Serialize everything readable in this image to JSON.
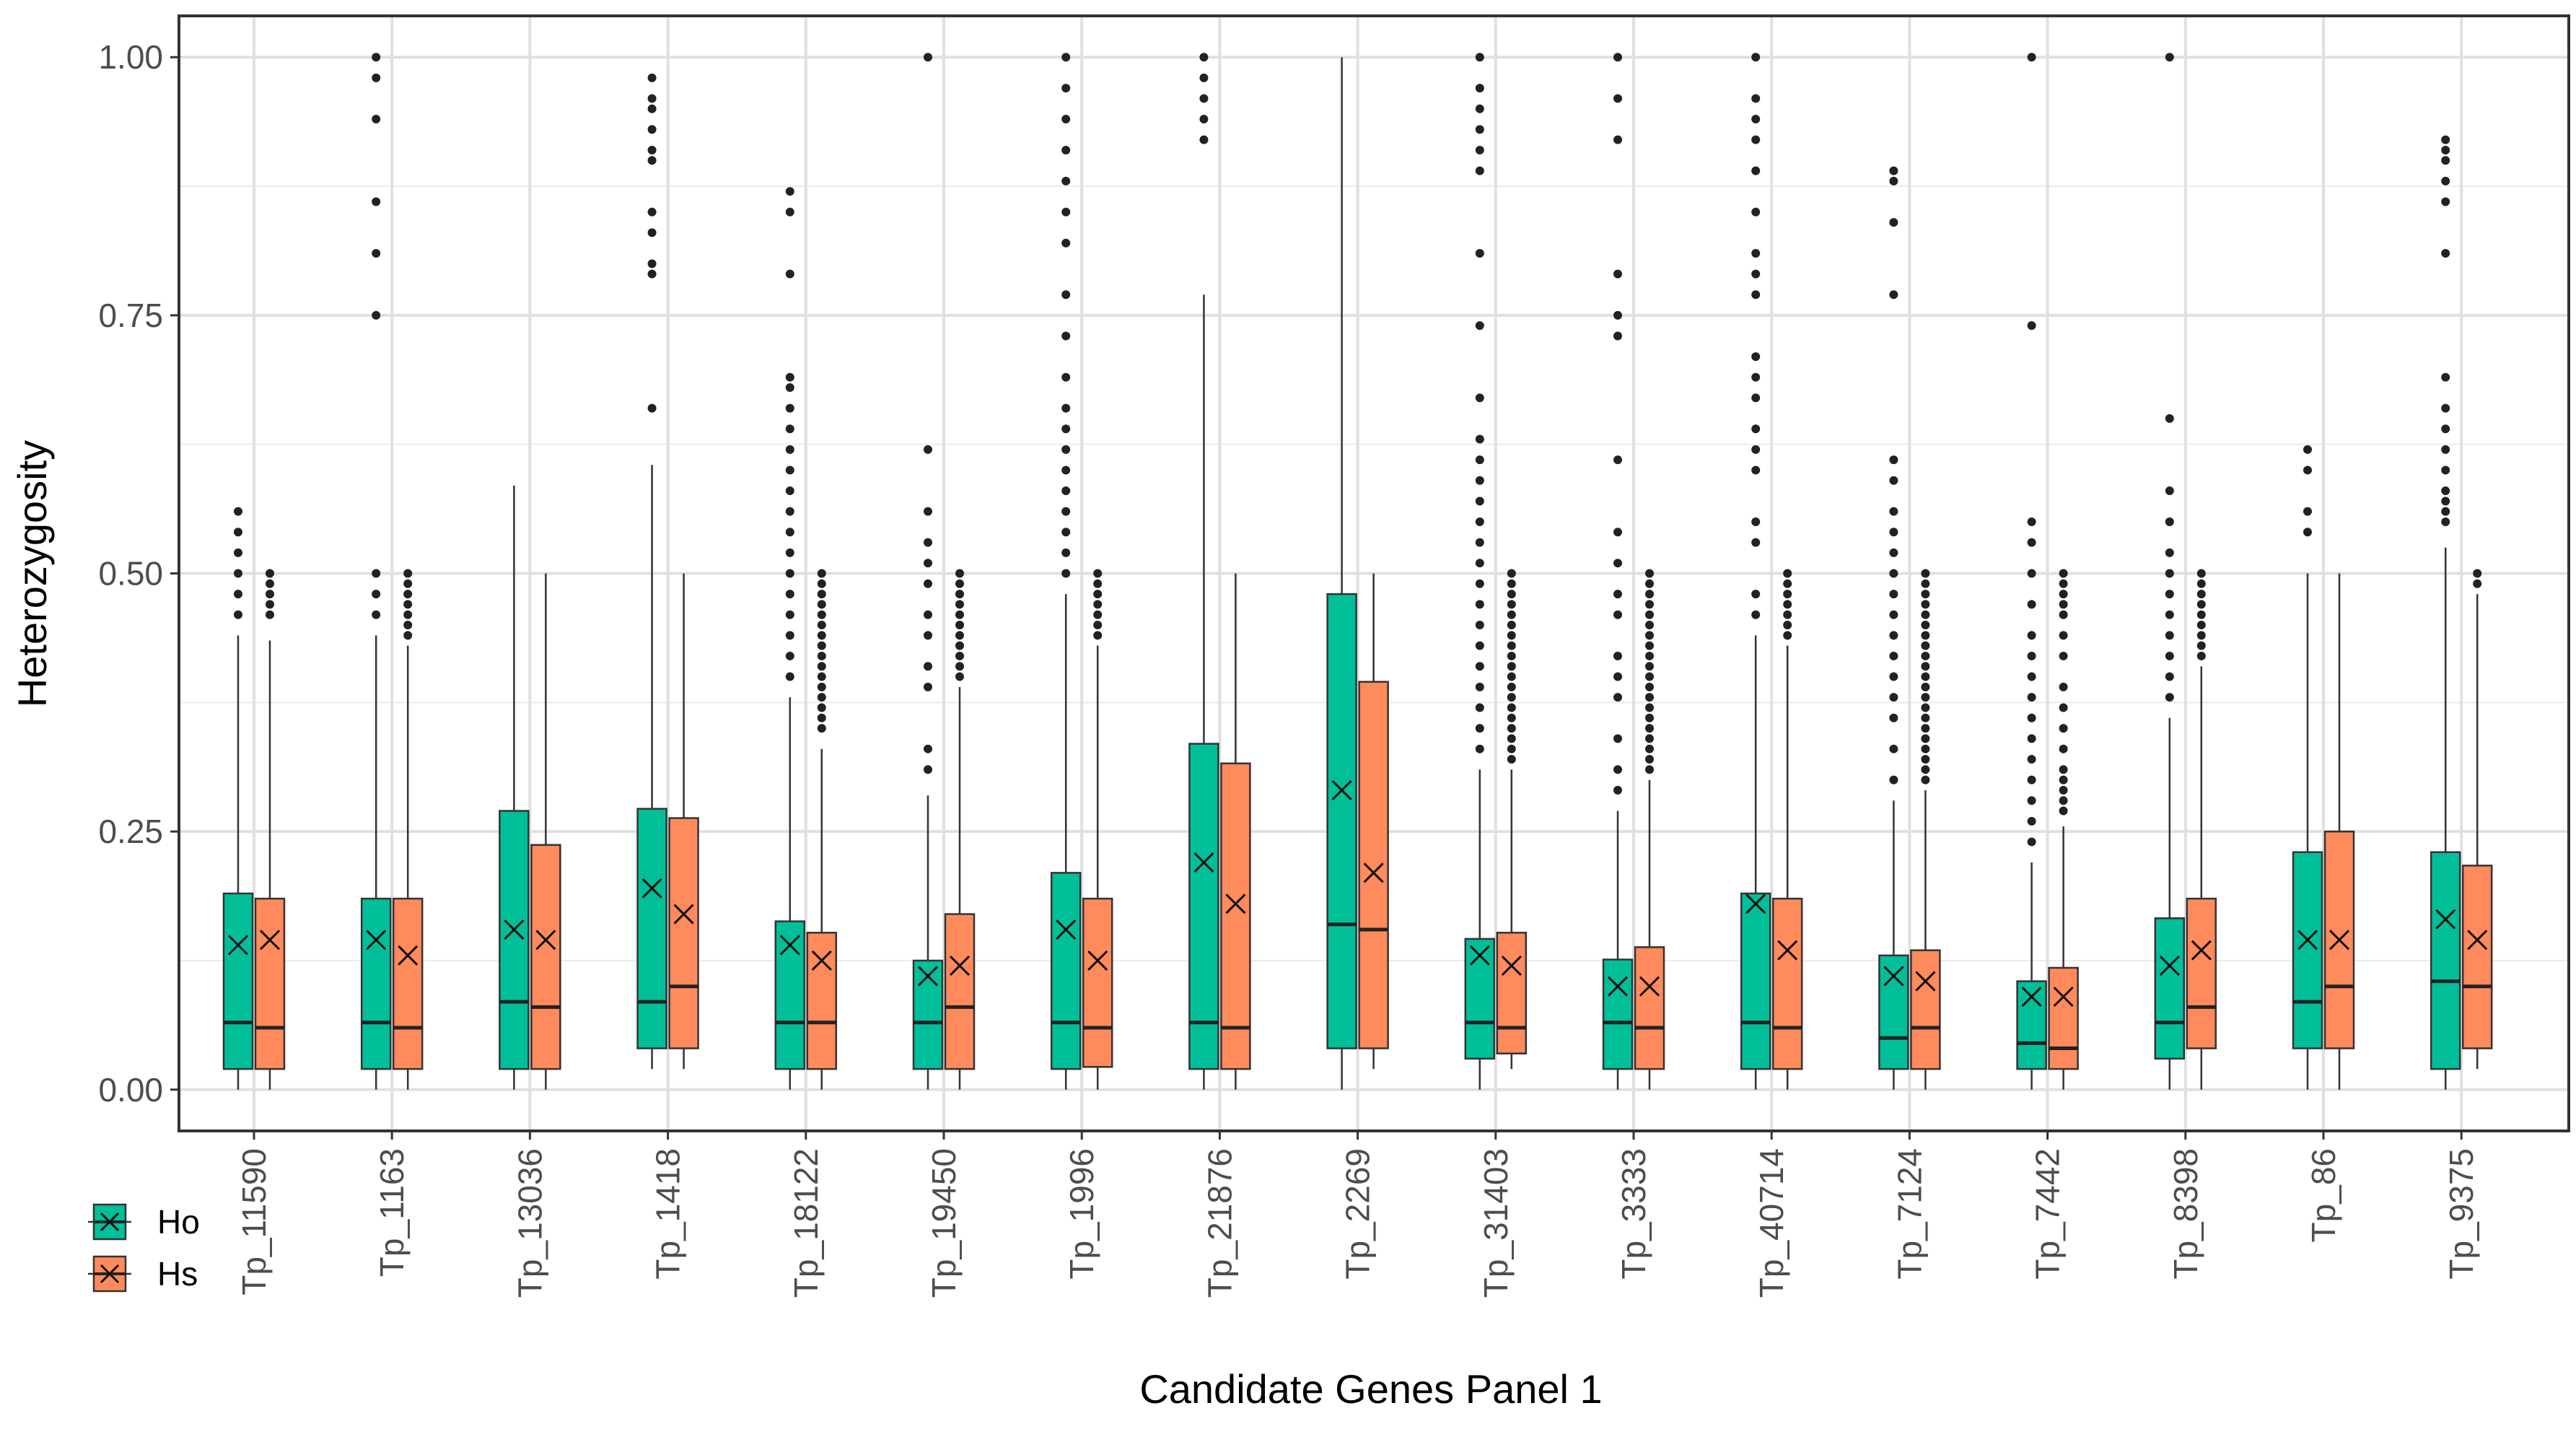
{
  "chart_data": {
    "type": "box",
    "title": "",
    "xlabel": "Candidate Genes Panel 1",
    "ylabel": "Heterozygosity",
    "ylim": [
      -0.04,
      1.04
    ],
    "yticks": [
      "0.00",
      "0.25",
      "0.50",
      "0.75",
      "1.00"
    ],
    "grid": true,
    "legend": {
      "position": "bottom-left",
      "entries": [
        {
          "name": "Ho",
          "color": "#00BF99"
        },
        {
          "name": "Hs",
          "color": "#FF8A5C"
        }
      ]
    },
    "mean_marker": "x",
    "categories": [
      "Tp_11590",
      "Tp_1163",
      "Tp_13036",
      "Tp_1418",
      "Tp_18122",
      "Tp_19450",
      "Tp_1996",
      "Tp_21876",
      "Tp_2269",
      "Tp_31403",
      "Tp_3333",
      "Tp_40714",
      "Tp_7124",
      "Tp_7442",
      "Tp_8398",
      "Tp_86",
      "Tp_9375"
    ],
    "series": [
      {
        "name": "Ho",
        "color": "#00BF99",
        "boxes": [
          {
            "q1": 0.02,
            "median": 0.065,
            "q3": 0.19,
            "whisker_low": 0.0,
            "whisker_high": 0.44,
            "mean": 0.14,
            "outliers": [
              0.46,
              0.48,
              0.5,
              0.52,
              0.54,
              0.56
            ]
          },
          {
            "q1": 0.02,
            "median": 0.065,
            "q3": 0.185,
            "whisker_low": 0.0,
            "whisker_high": 0.44,
            "mean": 0.145,
            "outliers": [
              0.46,
              0.48,
              0.5,
              0.75,
              0.81,
              0.86,
              0.94,
              0.98,
              1.0
            ]
          },
          {
            "q1": 0.02,
            "median": 0.085,
            "q3": 0.27,
            "whisker_low": 0.0,
            "whisker_high": 0.585,
            "mean": 0.155,
            "outliers": []
          },
          {
            "q1": 0.04,
            "median": 0.085,
            "q3": 0.272,
            "whisker_low": 0.02,
            "whisker_high": 0.605,
            "mean": 0.195,
            "outliers": [
              0.66,
              0.79,
              0.8,
              0.83,
              0.85,
              0.9,
              0.91,
              0.93,
              0.95,
              0.96,
              0.98
            ]
          },
          {
            "q1": 0.02,
            "median": 0.065,
            "q3": 0.163,
            "whisker_low": 0.0,
            "whisker_high": 0.38,
            "mean": 0.14,
            "outliers": [
              0.4,
              0.42,
              0.44,
              0.46,
              0.48,
              0.5,
              0.52,
              0.54,
              0.56,
              0.58,
              0.6,
              0.62,
              0.64,
              0.66,
              0.68,
              0.69,
              0.79,
              0.85,
              0.87
            ]
          },
          {
            "q1": 0.02,
            "median": 0.065,
            "q3": 0.125,
            "whisker_low": 0.0,
            "whisker_high": 0.285,
            "mean": 0.11,
            "outliers": [
              0.31,
              0.33,
              0.39,
              0.41,
              0.44,
              0.46,
              0.49,
              0.51,
              0.53,
              0.56,
              0.62,
              1.0
            ]
          },
          {
            "q1": 0.02,
            "median": 0.065,
            "q3": 0.21,
            "whisker_low": 0.0,
            "whisker_high": 0.48,
            "mean": 0.155,
            "outliers": [
              0.5,
              0.52,
              0.54,
              0.56,
              0.58,
              0.6,
              0.62,
              0.64,
              0.66,
              0.69,
              0.73,
              0.77,
              0.82,
              0.85,
              0.88,
              0.91,
              0.94,
              0.97,
              1.0
            ]
          },
          {
            "q1": 0.02,
            "median": 0.065,
            "q3": 0.335,
            "whisker_low": 0.0,
            "whisker_high": 0.77,
            "mean": 0.22,
            "outliers": [
              0.92,
              0.94,
              0.96,
              0.98,
              1.0
            ]
          },
          {
            "q1": 0.04,
            "median": 0.16,
            "q3": 0.48,
            "whisker_low": 0.0,
            "whisker_high": 1.0,
            "mean": 0.29,
            "outliers": []
          },
          {
            "q1": 0.03,
            "median": 0.065,
            "q3": 0.146,
            "whisker_low": 0.0,
            "whisker_high": 0.31,
            "mean": 0.13,
            "outliers": [
              0.33,
              0.35,
              0.37,
              0.39,
              0.41,
              0.43,
              0.45,
              0.47,
              0.49,
              0.51,
              0.53,
              0.55,
              0.57,
              0.59,
              0.61,
              0.63,
              0.67,
              0.74,
              0.81,
              0.89,
              0.91,
              0.93,
              0.95,
              0.97,
              1.0
            ]
          },
          {
            "q1": 0.02,
            "median": 0.065,
            "q3": 0.126,
            "whisker_low": 0.0,
            "whisker_high": 0.27,
            "mean": 0.1,
            "outliers": [
              0.29,
              0.31,
              0.34,
              0.38,
              0.4,
              0.42,
              0.46,
              0.48,
              0.51,
              0.54,
              0.61,
              0.73,
              0.75,
              0.79,
              0.92,
              0.96,
              1.0
            ]
          },
          {
            "q1": 0.02,
            "median": 0.065,
            "q3": 0.19,
            "whisker_low": 0.0,
            "whisker_high": 0.44,
            "mean": 0.18,
            "outliers": [
              0.46,
              0.48,
              0.53,
              0.55,
              0.6,
              0.62,
              0.64,
              0.67,
              0.69,
              0.71,
              0.77,
              0.79,
              0.81,
              0.85,
              0.89,
              0.92,
              0.94,
              0.96,
              1.0
            ]
          },
          {
            "q1": 0.02,
            "median": 0.05,
            "q3": 0.13,
            "whisker_low": 0.0,
            "whisker_high": 0.28,
            "mean": 0.11,
            "outliers": [
              0.3,
              0.33,
              0.36,
              0.38,
              0.4,
              0.42,
              0.44,
              0.46,
              0.48,
              0.5,
              0.52,
              0.54,
              0.56,
              0.59,
              0.61,
              0.77,
              0.84,
              0.88,
              0.89
            ]
          },
          {
            "q1": 0.02,
            "median": 0.045,
            "q3": 0.105,
            "whisker_low": 0.0,
            "whisker_high": 0.22,
            "mean": 0.09,
            "outliers": [
              0.24,
              0.26,
              0.28,
              0.3,
              0.32,
              0.34,
              0.36,
              0.38,
              0.4,
              0.42,
              0.44,
              0.47,
              0.5,
              0.53,
              0.55,
              0.74,
              1.0
            ]
          },
          {
            "q1": 0.03,
            "median": 0.065,
            "q3": 0.166,
            "whisker_low": 0.0,
            "whisker_high": 0.36,
            "mean": 0.12,
            "outliers": [
              0.38,
              0.4,
              0.42,
              0.44,
              0.46,
              0.48,
              0.5,
              0.52,
              0.55,
              0.58,
              0.65,
              1.0
            ]
          },
          {
            "q1": 0.04,
            "median": 0.085,
            "q3": 0.23,
            "whisker_low": 0.0,
            "whisker_high": 0.5,
            "mean": 0.145,
            "outliers": [
              0.54,
              0.56,
              0.6,
              0.62
            ]
          },
          {
            "q1": 0.02,
            "median": 0.105,
            "q3": 0.23,
            "whisker_low": 0.0,
            "whisker_high": 0.525,
            "mean": 0.165,
            "outliers": [
              0.55,
              0.56,
              0.57,
              0.58,
              0.6,
              0.62,
              0.64,
              0.66,
              0.69,
              0.81,
              0.86,
              0.88,
              0.9,
              0.91,
              0.92
            ]
          }
        ]
      },
      {
        "name": "Hs",
        "color": "#FF8A5C",
        "boxes": [
          {
            "q1": 0.02,
            "median": 0.06,
            "q3": 0.185,
            "whisker_low": 0.0,
            "whisker_high": 0.435,
            "mean": 0.145,
            "outliers": [
              0.46,
              0.47,
              0.48,
              0.49,
              0.5
            ]
          },
          {
            "q1": 0.02,
            "median": 0.06,
            "q3": 0.185,
            "whisker_low": 0.0,
            "whisker_high": 0.43,
            "mean": 0.13,
            "outliers": [
              0.44,
              0.45,
              0.46,
              0.47,
              0.48,
              0.49,
              0.5
            ]
          },
          {
            "q1": 0.02,
            "median": 0.08,
            "q3": 0.237,
            "whisker_low": 0.0,
            "whisker_high": 0.5,
            "mean": 0.145,
            "outliers": []
          },
          {
            "q1": 0.04,
            "median": 0.1,
            "q3": 0.263,
            "whisker_low": 0.02,
            "whisker_high": 0.5,
            "mean": 0.17,
            "outliers": []
          },
          {
            "q1": 0.02,
            "median": 0.065,
            "q3": 0.152,
            "whisker_low": 0.0,
            "whisker_high": 0.33,
            "mean": 0.125,
            "outliers": [
              0.35,
              0.36,
              0.37,
              0.38,
              0.39,
              0.4,
              0.41,
              0.42,
              0.43,
              0.44,
              0.45,
              0.46,
              0.47,
              0.48,
              0.49,
              0.5
            ]
          },
          {
            "q1": 0.02,
            "median": 0.08,
            "q3": 0.17,
            "whisker_low": 0.0,
            "whisker_high": 0.39,
            "mean": 0.12,
            "outliers": [
              0.4,
              0.41,
              0.42,
              0.43,
              0.44,
              0.45,
              0.46,
              0.47,
              0.48,
              0.49,
              0.5
            ]
          },
          {
            "q1": 0.022,
            "median": 0.06,
            "q3": 0.185,
            "whisker_low": 0.0,
            "whisker_high": 0.43,
            "mean": 0.125,
            "outliers": [
              0.44,
              0.45,
              0.46,
              0.47,
              0.48,
              0.49,
              0.5
            ]
          },
          {
            "q1": 0.02,
            "median": 0.06,
            "q3": 0.316,
            "whisker_low": 0.0,
            "whisker_high": 0.5,
            "mean": 0.18,
            "outliers": []
          },
          {
            "q1": 0.04,
            "median": 0.155,
            "q3": 0.395,
            "whisker_low": 0.02,
            "whisker_high": 0.5,
            "mean": 0.21,
            "outliers": []
          },
          {
            "q1": 0.035,
            "median": 0.06,
            "q3": 0.152,
            "whisker_low": 0.02,
            "whisker_high": 0.31,
            "mean": 0.12,
            "outliers": [
              0.32,
              0.33,
              0.34,
              0.35,
              0.36,
              0.37,
              0.38,
              0.39,
              0.4,
              0.41,
              0.42,
              0.43,
              0.44,
              0.45,
              0.46,
              0.47,
              0.48,
              0.49,
              0.5
            ]
          },
          {
            "q1": 0.02,
            "median": 0.06,
            "q3": 0.138,
            "whisker_low": 0.0,
            "whisker_high": 0.3,
            "mean": 0.1,
            "outliers": [
              0.31,
              0.32,
              0.33,
              0.34,
              0.35,
              0.36,
              0.37,
              0.38,
              0.39,
              0.4,
              0.41,
              0.42,
              0.43,
              0.44,
              0.45,
              0.46,
              0.47,
              0.48,
              0.49,
              0.5
            ]
          },
          {
            "q1": 0.02,
            "median": 0.06,
            "q3": 0.185,
            "whisker_low": 0.0,
            "whisker_high": 0.43,
            "mean": 0.135,
            "outliers": [
              0.44,
              0.45,
              0.46,
              0.47,
              0.48,
              0.49,
              0.5
            ]
          },
          {
            "q1": 0.02,
            "median": 0.06,
            "q3": 0.135,
            "whisker_low": 0.0,
            "whisker_high": 0.29,
            "mean": 0.105,
            "outliers": [
              0.3,
              0.31,
              0.32,
              0.33,
              0.34,
              0.35,
              0.36,
              0.37,
              0.38,
              0.39,
              0.4,
              0.41,
              0.42,
              0.43,
              0.44,
              0.45,
              0.46,
              0.47,
              0.48,
              0.49,
              0.5
            ]
          },
          {
            "q1": 0.02,
            "median": 0.04,
            "q3": 0.118,
            "whisker_low": 0.0,
            "whisker_high": 0.255,
            "mean": 0.09,
            "outliers": [
              0.27,
              0.28,
              0.29,
              0.3,
              0.31,
              0.33,
              0.35,
              0.37,
              0.39,
              0.42,
              0.44,
              0.46,
              0.47,
              0.48,
              0.49,
              0.5
            ]
          },
          {
            "q1": 0.04,
            "median": 0.08,
            "q3": 0.185,
            "whisker_low": 0.0,
            "whisker_high": 0.41,
            "mean": 0.135,
            "outliers": [
              0.42,
              0.43,
              0.44,
              0.45,
              0.46,
              0.47,
              0.48,
              0.49,
              0.5
            ]
          },
          {
            "q1": 0.04,
            "median": 0.1,
            "q3": 0.25,
            "whisker_low": 0.0,
            "whisker_high": 0.5,
            "mean": 0.145,
            "outliers": []
          },
          {
            "q1": 0.04,
            "median": 0.1,
            "q3": 0.217,
            "whisker_low": 0.02,
            "whisker_high": 0.48,
            "mean": 0.145,
            "outliers": [
              0.49,
              0.5
            ]
          }
        ]
      }
    ]
  }
}
